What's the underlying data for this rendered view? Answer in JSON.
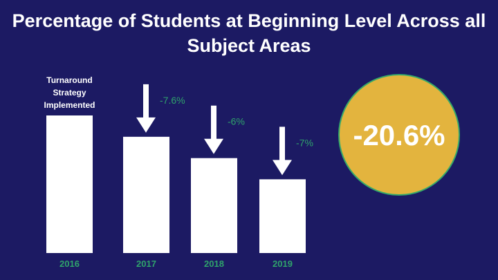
{
  "title": "Percentage of Students at Beginning Level Across all Subject Areas",
  "colors": {
    "background": "#1c1a63",
    "bar": "#ffffff",
    "tick_label": "#2fa36b",
    "delta_label": "#2fa36b",
    "arrow": "#ffffff",
    "total_circle_fill": "#e3b43e",
    "total_circle_stroke": "#35a96a",
    "total_text": "#ffffff"
  },
  "chart_data": {
    "type": "bar",
    "title": "Percentage of Students at Beginning Level Across all Subject Areas",
    "categories": [
      "2016",
      "2017",
      "2018",
      "2019"
    ],
    "values": [
      100,
      84.5,
      69.0,
      53.6
    ],
    "value_scale": "relative (values not printed; estimated from bar heights)",
    "changes": [
      "",
      "-7.6%",
      "-6%",
      "-7%"
    ],
    "annotation": {
      "category": "2016",
      "lines": [
        "Turnaround",
        "Strategy",
        "Implemented"
      ]
    },
    "total_change": "-20.6%",
    "ylim": [
      0,
      100
    ],
    "grid": false,
    "legend": "none"
  }
}
